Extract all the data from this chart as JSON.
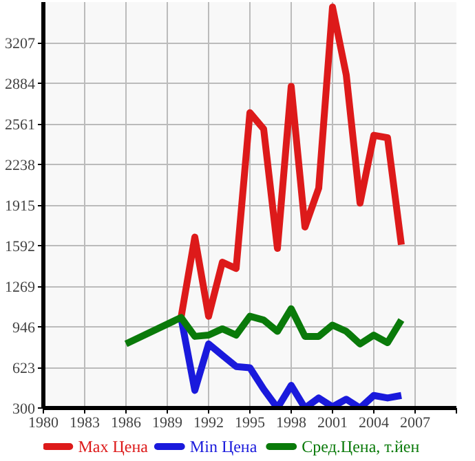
{
  "chart_data": {
    "type": "line",
    "x": [
      1990,
      1991,
      1992,
      1993,
      1994,
      1995,
      1996,
      1997,
      1998,
      1999,
      2000,
      2001,
      2002,
      2003,
      2004,
      2005,
      2006
    ],
    "series": [
      {
        "name": "Max Цена",
        "color": "#dd1a1a",
        "values": [
          1020,
          1660,
          1030,
          1460,
          1410,
          2650,
          2520,
          1570,
          2860,
          1740,
          2050,
          3490,
          2950,
          1930,
          2470,
          2450,
          1600
        ]
      },
      {
        "name": "Min Цена",
        "color": "#1a1adc",
        "values": [
          1020,
          440,
          810,
          720,
          630,
          620,
          450,
          300,
          480,
          300,
          380,
          310,
          370,
          300,
          400,
          380,
          400
        ]
      },
      {
        "name": "Сред.Цена, т.йен",
        "color": "#0a7a0a",
        "x": [
          1986,
          1990,
          1991,
          1992,
          1993,
          1994,
          1995,
          1996,
          1997,
          1998,
          1999,
          2000,
          2001,
          2002,
          2003,
          2004,
          2005,
          2006
        ],
        "values": [
          810,
          1020,
          870,
          880,
          930,
          880,
          1030,
          1000,
          910,
          1090,
          870,
          870,
          960,
          910,
          810,
          880,
          820,
          1000
        ]
      }
    ],
    "xlim": [
      1980,
      2010
    ],
    "xticks": [
      1980,
      1983,
      1986,
      1989,
      1992,
      1995,
      1998,
      2001,
      2004,
      2007,
      {
        "value": 2010,
        "label": null
      }
    ],
    "ylim": [
      300,
      3530
    ],
    "yticks": [
      300,
      623,
      946,
      1269,
      1592,
      1915,
      2238,
      2561,
      2884,
      3207
    ],
    "grid": true,
    "legend": "bottom",
    "marker": "none",
    "line_style": "solid"
  }
}
